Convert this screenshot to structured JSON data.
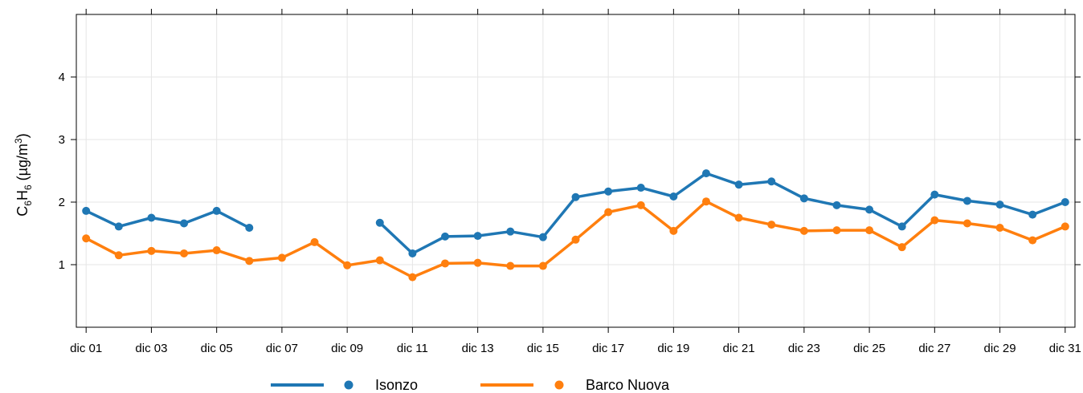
{
  "chart_data": {
    "type": "line",
    "title": "",
    "ylabel": {
      "main": "C",
      "sub1": "6",
      "mid": "H",
      "sub2": "6",
      "unit_open": " (µg/m",
      "sup": "3",
      "unit_close": ")"
    },
    "xlabel": "",
    "ylim": [
      0,
      5
    ],
    "yticks": [
      1,
      2,
      3,
      4
    ],
    "xlim": [
      0.7,
      31.3
    ],
    "xticks": [
      1,
      3,
      5,
      7,
      9,
      11,
      13,
      15,
      17,
      19,
      21,
      23,
      25,
      27,
      29,
      31
    ],
    "xtick_labels": [
      "dic 01",
      "dic 03",
      "dic 05",
      "dic 07",
      "dic 09",
      "dic 11",
      "dic 13",
      "dic 15",
      "dic 17",
      "dic 19",
      "dic 21",
      "dic 23",
      "dic 25",
      "dic 27",
      "dic 29",
      "dic 31"
    ],
    "grid": true,
    "legend_position": "bottom",
    "x": [
      1,
      2,
      3,
      4,
      5,
      6,
      7,
      8,
      9,
      10,
      11,
      12,
      13,
      14,
      15,
      16,
      17,
      18,
      19,
      20,
      21,
      22,
      23,
      24,
      25,
      26,
      27,
      28,
      29,
      30,
      31
    ],
    "series": [
      {
        "name": "Isonzo",
        "color": "#1f77b4",
        "values": [
          1.86,
          1.61,
          1.75,
          1.66,
          1.86,
          1.59,
          null,
          null,
          null,
          1.67,
          1.18,
          1.45,
          1.46,
          1.53,
          1.44,
          2.08,
          2.17,
          2.23,
          2.09,
          2.46,
          2.28,
          2.33,
          2.06,
          1.95,
          1.88,
          1.61,
          2.12,
          2.02,
          1.96,
          1.8,
          2.0
        ]
      },
      {
        "name": "Barco Nuova",
        "color": "#ff7f0e",
        "values": [
          1.42,
          1.15,
          1.22,
          1.18,
          1.23,
          1.06,
          1.11,
          1.36,
          0.99,
          1.07,
          0.8,
          1.02,
          1.03,
          0.98,
          0.98,
          1.4,
          1.84,
          1.95,
          1.54,
          2.01,
          1.75,
          1.64,
          1.54,
          1.55,
          1.55,
          1.28,
          1.71,
          1.66,
          1.59,
          1.39,
          1.61
        ]
      }
    ]
  }
}
